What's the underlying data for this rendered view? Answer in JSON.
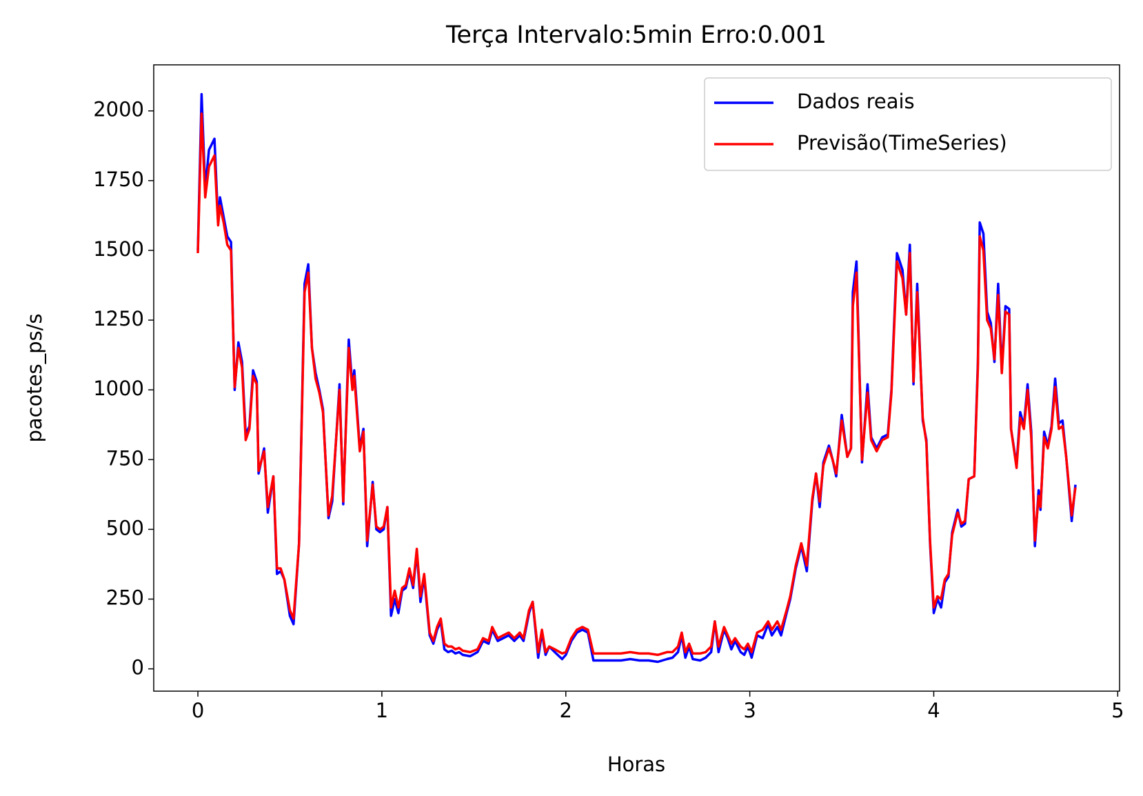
{
  "chart_data": {
    "type": "line",
    "title": "Terça Intervalo:5min Erro:0.001",
    "xlabel": "Horas",
    "ylabel": "pacotes_ps/s",
    "x": [
      0,
      0.02,
      0.04,
      0.06,
      0.09,
      0.11,
      0.12,
      0.14,
      0.16,
      0.18,
      0.2,
      0.22,
      0.24,
      0.26,
      0.28,
      0.3,
      0.32,
      0.33,
      0.36,
      0.38,
      0.41,
      0.43,
      0.45,
      0.47,
      0.5,
      0.52,
      0.55,
      0.58,
      0.6,
      0.62,
      0.64,
      0.66,
      0.68,
      0.71,
      0.73,
      0.77,
      0.79,
      0.82,
      0.84,
      0.85,
      0.88,
      0.9,
      0.92,
      0.95,
      0.97,
      0.99,
      1.01,
      1.03,
      1.05,
      1.07,
      1.09,
      1.11,
      1.13,
      1.15,
      1.17,
      1.19,
      1.21,
      1.23,
      1.26,
      1.28,
      1.3,
      1.32,
      1.34,
      1.36,
      1.38,
      1.4,
      1.42,
      1.44,
      1.48,
      1.52,
      1.55,
      1.58,
      1.6,
      1.63,
      1.66,
      1.69,
      1.72,
      1.75,
      1.77,
      1.8,
      1.82,
      1.85,
      1.87,
      1.89,
      1.91,
      1.94,
      1.98,
      2.0,
      2.03,
      2.06,
      2.09,
      2.12,
      2.15,
      2.2,
      2.25,
      2.3,
      2.35,
      2.4,
      2.45,
      2.5,
      2.55,
      2.58,
      2.61,
      2.63,
      2.65,
      2.67,
      2.69,
      2.73,
      2.76,
      2.79,
      2.81,
      2.83,
      2.86,
      2.88,
      2.9,
      2.92,
      2.95,
      2.97,
      2.99,
      3.01,
      3.04,
      3.07,
      3.1,
      3.12,
      3.15,
      3.17,
      3.2,
      3.22,
      3.25,
      3.28,
      3.31,
      3.34,
      3.36,
      3.38,
      3.4,
      3.43,
      3.45,
      3.47,
      3.5,
      3.53,
      3.55,
      3.56,
      3.58,
      3.61,
      3.64,
      3.66,
      3.69,
      3.72,
      3.75,
      3.77,
      3.8,
      3.83,
      3.85,
      3.87,
      3.89,
      3.91,
      3.94,
      3.96,
      3.98,
      4.0,
      4.02,
      4.04,
      4.06,
      4.08,
      4.1,
      4.13,
      4.15,
      4.17,
      4.19,
      4.22,
      4.24,
      4.25,
      4.27,
      4.29,
      4.31,
      4.33,
      4.35,
      4.37,
      4.39,
      4.41,
      4.42,
      4.45,
      4.47,
      4.49,
      4.51,
      4.53,
      4.55,
      4.57,
      4.58,
      4.6,
      4.62,
      4.64,
      4.66,
      4.68,
      4.7,
      4.72,
      4.75,
      4.77
    ],
    "series": [
      {
        "name": "Dados reais",
        "color": "#0000ff",
        "values": [
          1500,
          2060,
          1720,
          1860,
          1900,
          1600,
          1690,
          1620,
          1550,
          1530,
          1000,
          1170,
          1100,
          840,
          870,
          1070,
          1030,
          700,
          790,
          560,
          690,
          340,
          350,
          320,
          190,
          160,
          450,
          1380,
          1450,
          1150,
          1060,
          1000,
          930,
          540,
          600,
          1020,
          590,
          1180,
          1010,
          1070,
          790,
          860,
          440,
          670,
          500,
          490,
          500,
          580,
          190,
          250,
          200,
          280,
          290,
          350,
          290,
          420,
          240,
          330,
          120,
          90,
          140,
          170,
          70,
          60,
          65,
          55,
          60,
          50,
          45,
          60,
          100,
          90,
          140,
          100,
          110,
          120,
          100,
          120,
          100,
          200,
          240,
          40,
          130,
          50,
          80,
          60,
          35,
          50,
          100,
          130,
          140,
          130,
          30,
          30,
          30,
          30,
          35,
          30,
          30,
          25,
          35,
          40,
          60,
          120,
          40,
          80,
          35,
          30,
          40,
          60,
          170,
          60,
          140,
          110,
          70,
          100,
          60,
          50,
          80,
          40,
          120,
          110,
          160,
          120,
          150,
          120,
          200,
          250,
          360,
          440,
          350,
          600,
          700,
          580,
          740,
          800,
          750,
          690,
          910,
          760,
          790,
          1350,
          1460,
          740,
          1020,
          830,
          790,
          830,
          840,
          1000,
          1490,
          1430,
          1270,
          1520,
          1020,
          1380,
          890,
          820,
          450,
          200,
          250,
          220,
          310,
          330,
          490,
          570,
          510,
          520,
          680,
          690,
          1100,
          1600,
          1560,
          1280,
          1240,
          1100,
          1380,
          1070,
          1300,
          1290,
          860,
          730,
          920,
          870,
          1020,
          850,
          440,
          640,
          570,
          850,
          800,
          870,
          1040,
          880,
          890,
          760,
          530,
          660
        ]
      },
      {
        "name": "Previsão(TimeSeries)",
        "color": "#ff0000",
        "values": [
          1490,
          1990,
          1690,
          1800,
          1840,
          1590,
          1660,
          1600,
          1520,
          1500,
          1010,
          1150,
          1080,
          820,
          860,
          1050,
          1020,
          710,
          780,
          580,
          690,
          360,
          360,
          320,
          210,
          180,
          450,
          1350,
          1420,
          1150,
          1040,
          990,
          920,
          550,
          620,
          1000,
          600,
          1150,
          1000,
          1050,
          780,
          850,
          460,
          660,
          510,
          500,
          510,
          580,
          220,
          280,
          220,
          290,
          300,
          360,
          300,
          430,
          260,
          340,
          130,
          100,
          150,
          180,
          90,
          80,
          80,
          70,
          75,
          65,
          60,
          70,
          110,
          100,
          150,
          110,
          120,
          130,
          110,
          130,
          110,
          210,
          240,
          60,
          140,
          60,
          80,
          70,
          55,
          60,
          110,
          140,
          150,
          140,
          55,
          55,
          55,
          55,
          60,
          55,
          55,
          50,
          60,
          60,
          80,
          130,
          60,
          90,
          55,
          55,
          60,
          80,
          170,
          80,
          150,
          120,
          90,
          110,
          80,
          70,
          90,
          60,
          130,
          140,
          170,
          140,
          170,
          140,
          210,
          260,
          370,
          450,
          370,
          610,
          700,
          600,
          730,
          790,
          750,
          700,
          890,
          760,
          790,
          1300,
          1420,
          750,
          990,
          820,
          780,
          820,
          830,
          990,
          1460,
          1400,
          1270,
          1490,
          1030,
          1350,
          900,
          810,
          460,
          220,
          260,
          250,
          320,
          340,
          480,
          560,
          520,
          530,
          680,
          690,
          1080,
          1550,
          1500,
          1250,
          1220,
          1110,
          1340,
          1060,
          1280,
          1270,
          860,
          720,
          900,
          860,
          1000,
          830,
          460,
          620,
          580,
          830,
          790,
          860,
          1010,
          860,
          870,
          760,
          550,
          650
        ]
      }
    ],
    "xlim": [
      -0.24,
      5.01
    ],
    "ylim": [
      -80,
      2165
    ],
    "xticks": [
      0,
      1,
      2,
      3,
      4,
      5
    ],
    "yticks": [
      0,
      250,
      500,
      750,
      1000,
      1250,
      1500,
      1750,
      2000
    ],
    "legend": "upper right"
  }
}
